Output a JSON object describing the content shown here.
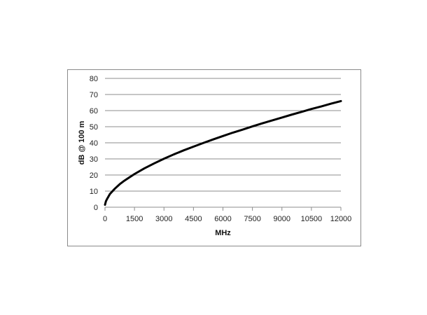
{
  "chart_data": {
    "type": "line",
    "title": "",
    "xlabel": "MHz",
    "ylabel": "dB @ 100 m",
    "xlim": [
      0,
      12000
    ],
    "ylim": [
      0,
      80
    ],
    "x_ticks": [
      "0",
      "1500",
      "3000",
      "4500",
      "6000",
      "7500",
      "9000",
      "10500",
      "12000"
    ],
    "y_ticks": [
      "0",
      "10",
      "20",
      "30",
      "40",
      "50",
      "60",
      "70",
      "80"
    ],
    "grid": "horizontal",
    "legend": "none",
    "series": [
      {
        "color": "#000000",
        "x": [
          1,
          50,
          100,
          250,
          500,
          750,
          1000,
          1500,
          2000,
          2500,
          3000,
          3500,
          4000,
          4500,
          5000,
          5500,
          6000,
          6500,
          7000,
          7500,
          8000,
          8500,
          9000,
          9500,
          10000,
          10500,
          11000,
          11500,
          12000
        ],
        "y": [
          1.5,
          3.8,
          5.0,
          8.2,
          11.5,
          14.3,
          16.6,
          20.6,
          24.1,
          27.2,
          30.1,
          32.8,
          35.3,
          37.6,
          39.9,
          42.1,
          44.2,
          46.3,
          48.2,
          50.2,
          52.1,
          53.9,
          55.7,
          57.5,
          59.2,
          61.0,
          62.6,
          64.3,
          65.9
        ]
      }
    ],
    "colors": {
      "line": "#000000",
      "grid": "#8c8c8c",
      "frame": "#8a8a8a"
    }
  }
}
